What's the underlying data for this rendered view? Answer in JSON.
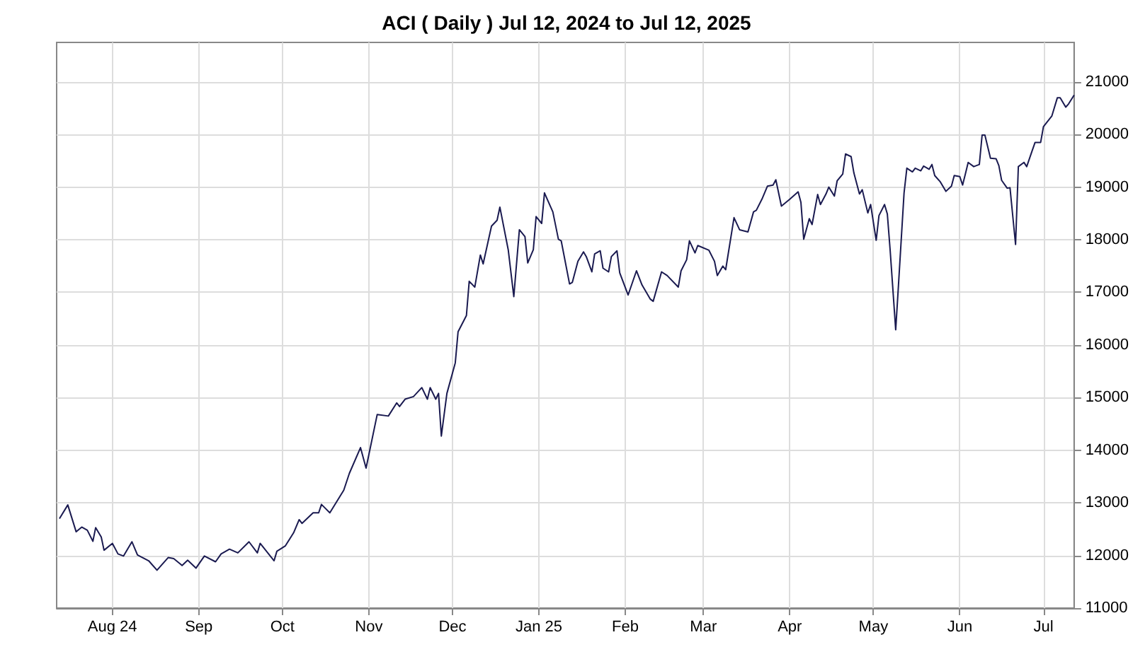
{
  "chart_data": {
    "type": "line",
    "title": "ACI ( Daily ) Jul 12, 2024 to Jul 12, 2025",
    "xlim": [
      "2024-07-12",
      "2025-07-12"
    ],
    "xticks": [
      {
        "value": "2024-08-01",
        "label": "Aug 24"
      },
      {
        "value": "2024-09-01",
        "label": "Sep"
      },
      {
        "value": "2024-10-01",
        "label": "Oct"
      },
      {
        "value": "2024-11-01",
        "label": "Nov"
      },
      {
        "value": "2024-12-01",
        "label": "Dec"
      },
      {
        "value": "2025-01-01",
        "label": "Jan 25"
      },
      {
        "value": "2025-02-01",
        "label": "Feb"
      },
      {
        "value": "2025-03-01",
        "label": "Mar"
      },
      {
        "value": "2025-04-01",
        "label": "Apr"
      },
      {
        "value": "2025-05-01",
        "label": "May"
      },
      {
        "value": "2025-06-01",
        "label": "Jun"
      },
      {
        "value": "2025-07-01",
        "label": "Jul"
      }
    ],
    "ylim": [
      11000,
      21750
    ],
    "yticks": [
      11000,
      12000,
      13000,
      14000,
      15000,
      16000,
      17000,
      18000,
      19000,
      20000,
      21000
    ],
    "grid": true,
    "marker": "none",
    "line_style": "solid",
    "x": [
      "2024-07-13",
      "2024-07-16",
      "2024-07-19",
      "2024-07-21",
      "2024-07-23",
      "2024-07-25",
      "2024-07-26",
      "2024-07-28",
      "2024-07-29",
      "2024-08-01",
      "2024-08-03",
      "2024-08-05",
      "2024-08-08",
      "2024-08-10",
      "2024-08-14",
      "2024-08-17",
      "2024-08-21",
      "2024-08-23",
      "2024-08-26",
      "2024-08-28",
      "2024-08-31",
      "2024-09-03",
      "2024-09-07",
      "2024-09-09",
      "2024-09-12",
      "2024-09-15",
      "2024-09-19",
      "2024-09-22",
      "2024-09-23",
      "2024-09-28",
      "2024-09-29",
      "2024-10-02",
      "2024-10-05",
      "2024-10-07",
      "2024-10-08",
      "2024-10-12",
      "2024-10-14",
      "2024-10-15",
      "2024-10-18",
      "2024-10-23",
      "2024-10-25",
      "2024-10-29",
      "2024-10-31",
      "2024-11-04",
      "2024-11-08",
      "2024-11-11",
      "2024-11-12",
      "2024-11-14",
      "2024-11-17",
      "2024-11-20",
      "2024-11-22",
      "2024-11-23",
      "2024-11-25",
      "2024-11-26",
      "2024-11-27",
      "2024-11-29",
      "2024-12-02",
      "2024-12-03",
      "2024-12-06",
      "2024-12-07",
      "2024-12-09",
      "2024-12-11",
      "2024-12-12",
      "2024-12-15",
      "2024-12-17",
      "2024-12-18",
      "2024-12-21",
      "2024-12-23",
      "2024-12-25",
      "2024-12-27",
      "2024-12-28",
      "2024-12-30",
      "2024-12-31",
      "2025-01-02",
      "2025-01-03",
      "2025-01-06",
      "2025-01-08",
      "2025-01-09",
      "2025-01-12",
      "2025-01-13",
      "2025-01-15",
      "2025-01-17",
      "2025-01-18",
      "2025-01-20",
      "2025-01-21",
      "2025-01-23",
      "2025-01-24",
      "2025-01-26",
      "2025-01-27",
      "2025-01-29",
      "2025-01-30",
      "2025-02-02",
      "2025-02-05",
      "2025-02-07",
      "2025-02-10",
      "2025-02-11",
      "2025-02-14",
      "2025-02-16",
      "2025-02-20",
      "2025-02-21",
      "2025-02-23",
      "2025-02-24",
      "2025-02-26",
      "2025-02-27",
      "2025-03-03",
      "2025-03-05",
      "2025-03-06",
      "2025-03-08",
      "2025-03-09",
      "2025-03-12",
      "2025-03-14",
      "2025-03-17",
      "2025-03-19",
      "2025-03-20",
      "2025-03-22",
      "2025-03-24",
      "2025-03-26",
      "2025-03-27",
      "2025-03-29",
      "2025-04-01",
      "2025-04-04",
      "2025-04-05",
      "2025-04-06",
      "2025-04-08",
      "2025-04-09",
      "2025-04-11",
      "2025-04-12",
      "2025-04-14",
      "2025-04-15",
      "2025-04-17",
      "2025-04-18",
      "2025-04-20",
      "2025-04-21",
      "2025-04-23",
      "2025-04-24",
      "2025-04-26",
      "2025-04-27",
      "2025-04-29",
      "2025-04-30",
      "2025-05-02",
      "2025-05-03",
      "2025-05-05",
      "2025-05-06",
      "2025-05-07",
      "2025-05-09",
      "2025-05-10",
      "2025-05-12",
      "2025-05-13",
      "2025-05-15",
      "2025-05-16",
      "2025-05-18",
      "2025-05-19",
      "2025-05-21",
      "2025-05-22",
      "2025-05-23",
      "2025-05-25",
      "2025-05-27",
      "2025-05-29",
      "2025-05-30",
      "2025-06-01",
      "2025-06-02",
      "2025-06-03",
      "2025-06-04",
      "2025-06-06",
      "2025-06-08",
      "2025-06-09",
      "2025-06-10",
      "2025-06-12",
      "2025-06-14",
      "2025-06-15",
      "2025-06-16",
      "2025-06-18",
      "2025-06-19",
      "2025-06-21",
      "2025-06-22",
      "2025-06-24",
      "2025-06-25",
      "2025-06-27",
      "2025-06-28",
      "2025-06-30",
      "2025-07-01",
      "2025-07-04",
      "2025-07-06",
      "2025-07-07",
      "2025-07-09",
      "2025-07-10",
      "2025-07-12"
    ],
    "series": [
      {
        "color": "#1a1a50",
        "values": [
          12700,
          12960,
          12450,
          12540,
          12480,
          12270,
          12530,
          12350,
          12100,
          12230,
          12030,
          11990,
          12260,
          12010,
          11900,
          11720,
          11960,
          11940,
          11810,
          11910,
          11760,
          11990,
          11880,
          12030,
          12120,
          12050,
          12260,
          12050,
          12230,
          11900,
          12080,
          12180,
          12430,
          12680,
          12610,
          12810,
          12810,
          12970,
          12810,
          13240,
          13560,
          14050,
          13660,
          14680,
          14650,
          14900,
          14830,
          14970,
          15020,
          15190,
          14970,
          15190,
          14970,
          15080,
          14270,
          15080,
          15660,
          16250,
          16560,
          17210,
          17100,
          17710,
          17540,
          18260,
          18370,
          18620,
          17810,
          16920,
          18190,
          18060,
          17560,
          17810,
          18440,
          18310,
          18890,
          18530,
          18010,
          17980,
          17160,
          17190,
          17590,
          17770,
          17680,
          17390,
          17730,
          17790,
          17460,
          17390,
          17680,
          17790,
          17370,
          16950,
          17410,
          17140,
          16870,
          16830,
          17390,
          17320,
          17100,
          17410,
          17620,
          17980,
          17750,
          17890,
          17800,
          17590,
          17320,
          17500,
          17430,
          18420,
          18190,
          18150,
          18530,
          18560,
          18770,
          19020,
          19040,
          19140,
          18640,
          18770,
          18910,
          18710,
          18010,
          18400,
          18290,
          18860,
          18670,
          18870,
          19000,
          18830,
          19120,
          19250,
          19630,
          19580,
          19270,
          18870,
          18950,
          18510,
          18670,
          17990,
          18460,
          18670,
          18490,
          17810,
          16290,
          17140,
          18890,
          19360,
          19290,
          19360,
          19310,
          19400,
          19340,
          19430,
          19220,
          19100,
          18920,
          19020,
          19220,
          19200,
          19040,
          19250,
          19470,
          19390,
          19430,
          19990,
          19990,
          19550,
          19540,
          19410,
          19130,
          18980,
          18990,
          17910,
          19390,
          19470,
          19390,
          19700,
          19850,
          19850,
          20150,
          20350,
          20700,
          20700,
          20520,
          20580,
          20750
        ]
      }
    ]
  }
}
